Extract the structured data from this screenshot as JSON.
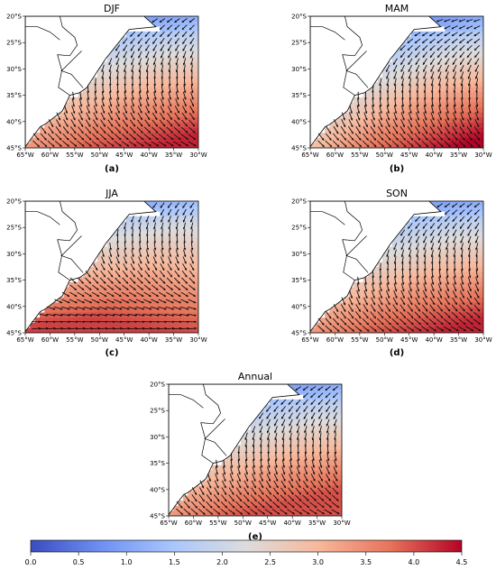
{
  "figure": {
    "colorbar": {
      "min": 0.0,
      "max": 4.5,
      "ticks": [
        "0.0",
        "0.5",
        "1.0",
        "1.5",
        "2.0",
        "2.5",
        "3.0",
        "3.5",
        "4.0",
        "4.5"
      ],
      "colormap": "coolwarm",
      "colors": {
        "low": "#3b4cc0",
        "mid": "#dddddd",
        "high": "#b40426"
      }
    },
    "lon_ticks": [
      "65°W",
      "60°W",
      "55°W",
      "50°W",
      "45°W",
      "40°W",
      "35°W",
      "30°W"
    ],
    "lat_ticks": [
      "20°S",
      "25°S",
      "30°S",
      "35°S",
      "40°S",
      "45°S"
    ],
    "panels": [
      {
        "id": "djf",
        "title": "DJF",
        "label": "(a)",
        "pattern": "southern-strong",
        "max_value": 4.3
      },
      {
        "id": "mam",
        "title": "MAM",
        "label": "(b)",
        "pattern": "southeast-strong",
        "max_value": 4.5
      },
      {
        "id": "jja",
        "title": "JJA",
        "label": "(c)",
        "pattern": "southwest-strong",
        "max_value": 4.1
      },
      {
        "id": "son",
        "title": "SON",
        "label": "(d)",
        "pattern": "southern-strong",
        "max_value": 4.3
      },
      {
        "id": "annual",
        "title": "Annual",
        "label": "(e)",
        "pattern": "southern-strong",
        "max_value": 4.0
      }
    ]
  }
}
